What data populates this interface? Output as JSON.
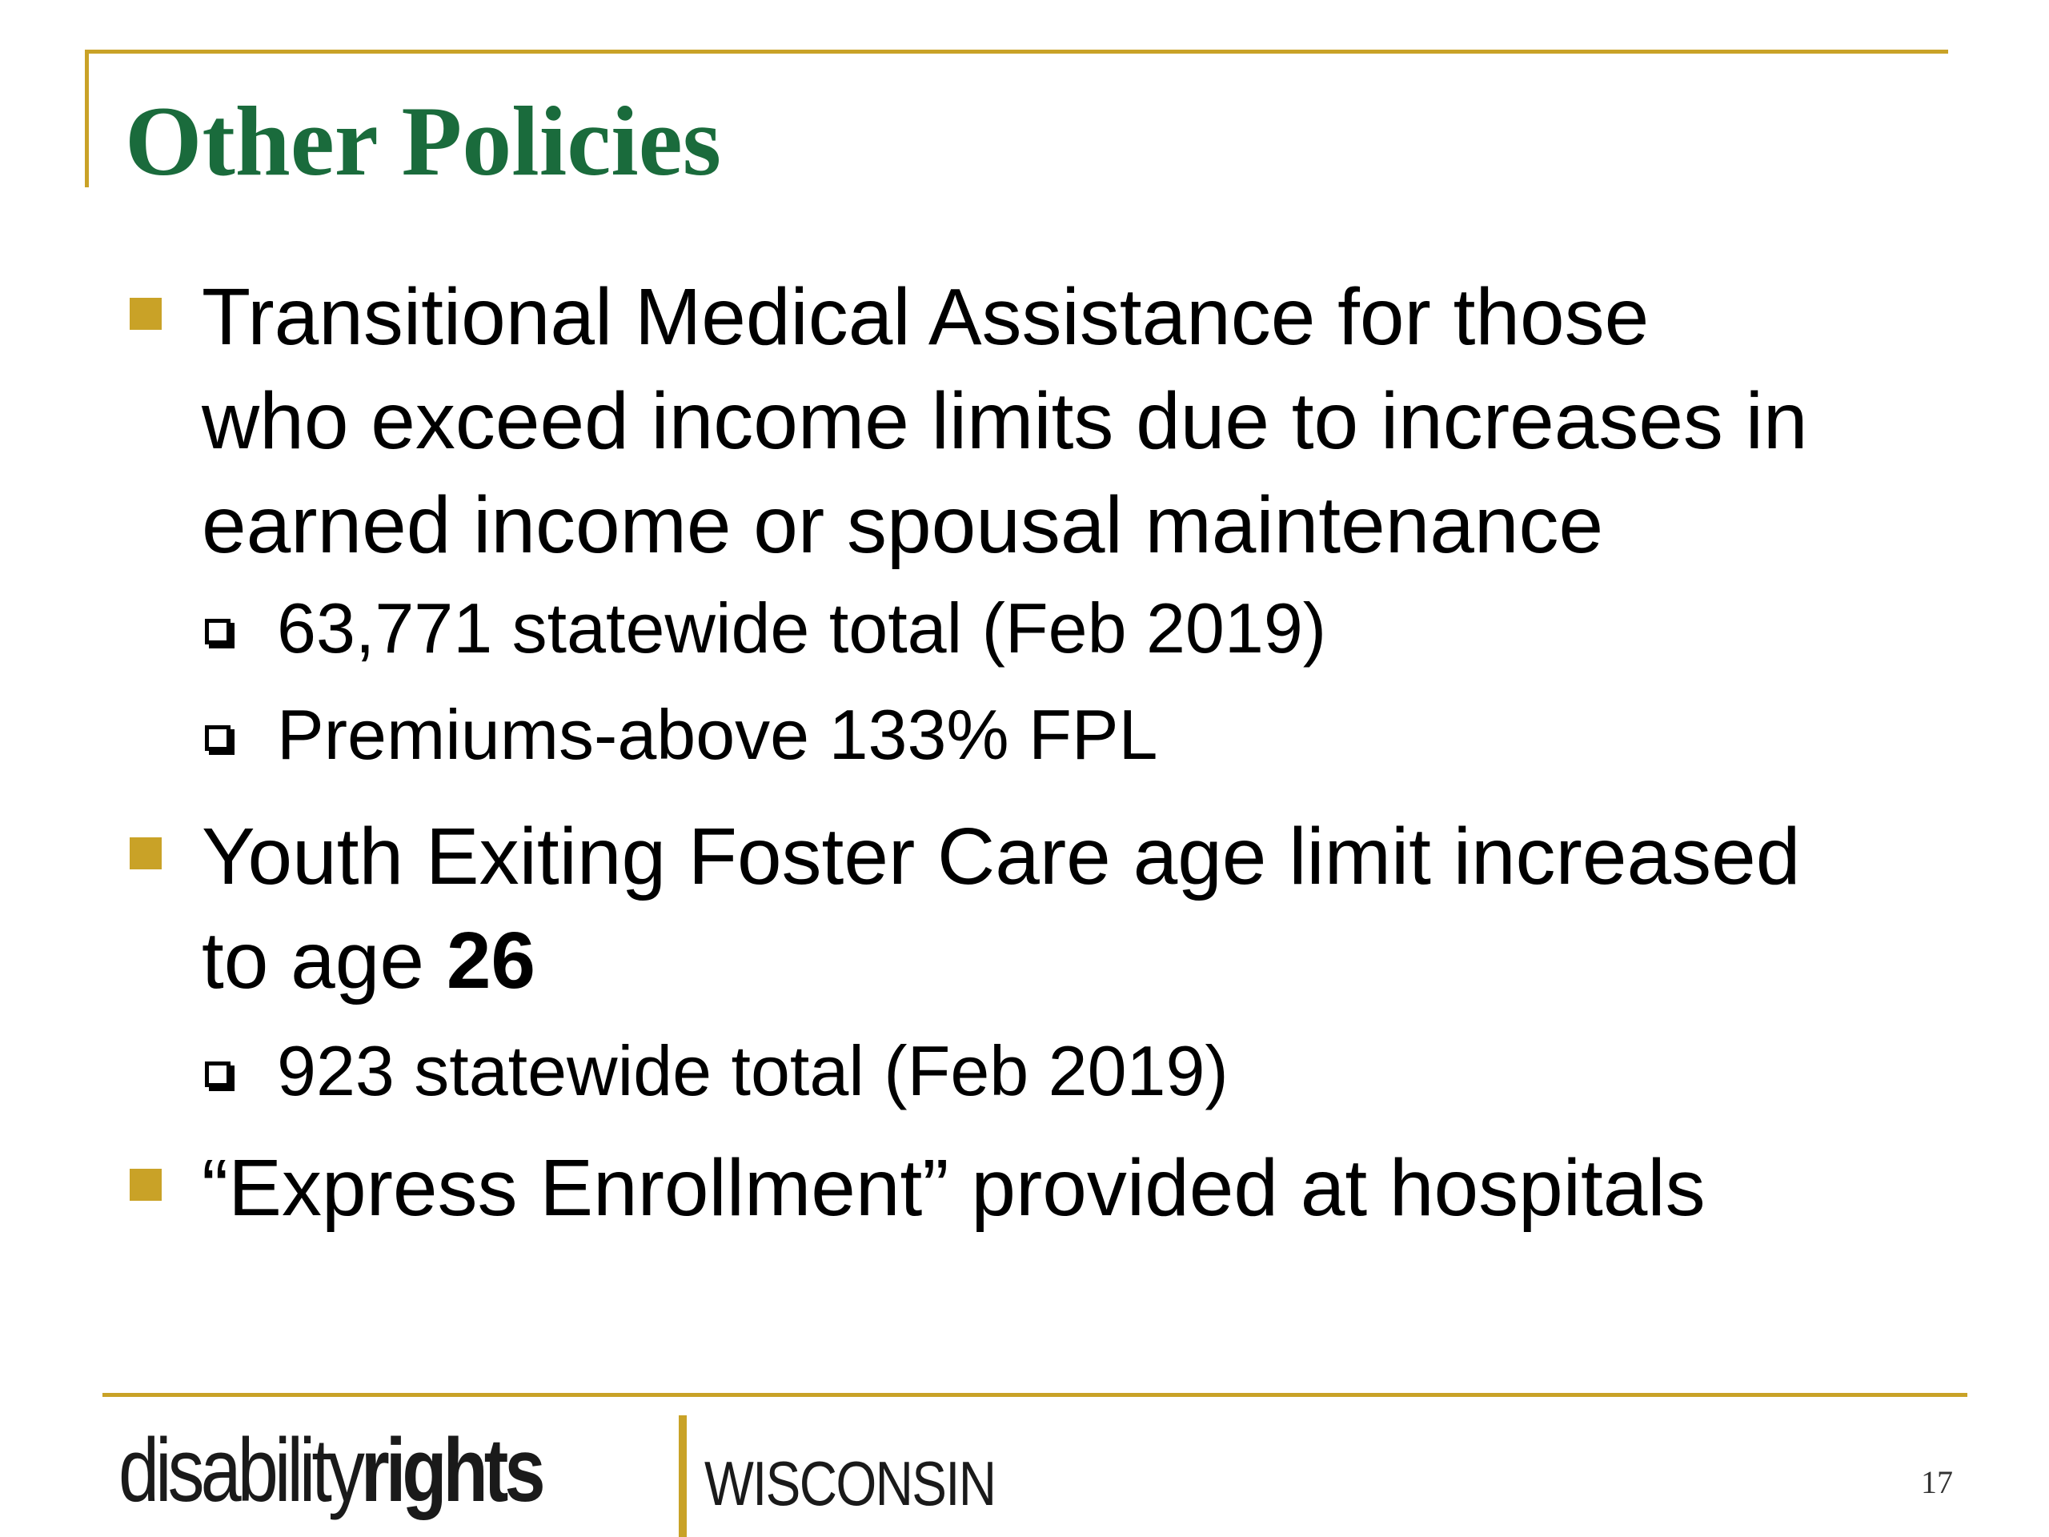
{
  "slide": {
    "title": "Other Policies",
    "page_number": "17",
    "colors": {
      "accent_gold": "#c9a227",
      "title_green": "#1a6b3c",
      "text": "#000000"
    }
  },
  "bullets": [
    {
      "lines": [
        "Transitional Medical Assistance for those",
        "who exceed income limits due to increases in",
        "earned income or spousal maintenance"
      ],
      "sub_items": [
        "63,771 statewide total (Feb 2019)",
        "Premiums-above 133% FPL"
      ]
    },
    {
      "line1": "Youth Exiting Foster Care age limit increased",
      "line2_prefix": "to age ",
      "line2_bold": "26",
      "sub_items": [
        "923 statewide total (Feb 2019)"
      ]
    },
    {
      "lines": [
        "“Express Enrollment” provided at hospitals"
      ]
    }
  ],
  "footer": {
    "logo_disability": "disability",
    "logo_rights": "rights",
    "logo_wisconsin": "WISCONSIN"
  },
  "icons": {
    "primary_bullet": "gold-square-bullet-icon",
    "secondary_bullet": "hollow-square-bullet-icon"
  }
}
